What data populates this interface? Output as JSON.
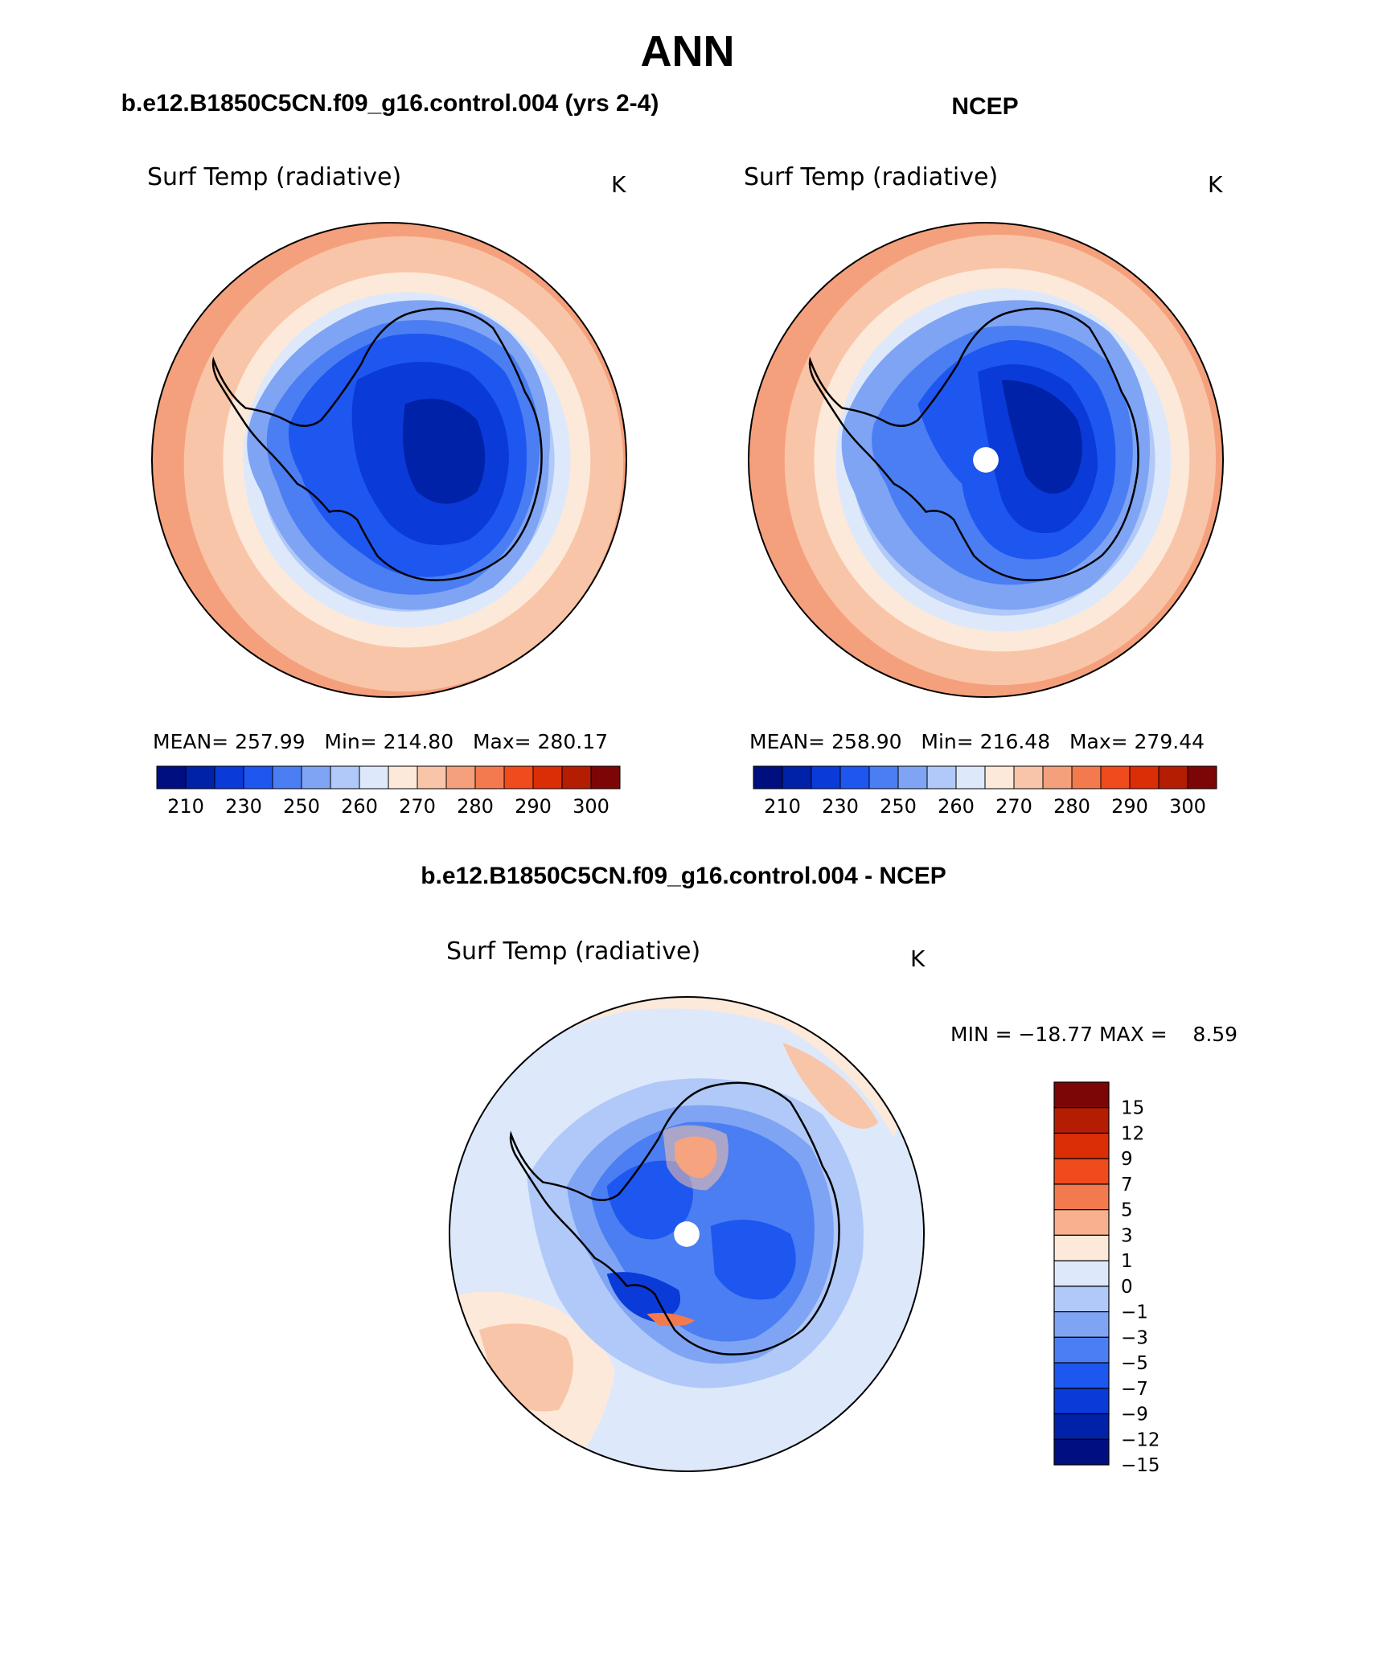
{
  "page_title": "ANN",
  "panels": [
    {
      "id": "model",
      "header": "b.e12.B1850C5CN.f09_g16.control.004 (yrs 2-4)",
      "variable": "Surf Temp (radiative)",
      "units": "K",
      "stats": "MEAN= 257.99   Min= 214.80   Max= 280.17"
    },
    {
      "id": "obs",
      "header": "NCEP",
      "variable": "Surf Temp (radiative)",
      "units": "K",
      "stats": "MEAN= 258.90   Min= 216.48   Max= 279.44"
    },
    {
      "id": "diff",
      "header": "b.e12.B1850C5CN.f09_g16.control.004 - NCEP",
      "variable": "Surf Temp (radiative)",
      "units": "K",
      "stats": "MIN = −18.77 MAX =    8.59"
    }
  ],
  "chart_data": [
    {
      "type": "heatmap",
      "projection": "south polar stereographic",
      "title": "Surf Temp (radiative)",
      "units": "K",
      "mean": 257.99,
      "min": 214.8,
      "max": 280.17,
      "colorbar": {
        "orientation": "horizontal",
        "tick_labels": [
          "210",
          "230",
          "250",
          "260",
          "270",
          "280",
          "290",
          "300"
        ],
        "colors": [
          "#000f80",
          "#0022a8",
          "#0a3ad8",
          "#1e56f0",
          "#4a7ef2",
          "#7fa4f4",
          "#b1c9f8",
          "#dde9fb",
          "#fde9d9",
          "#f9c5a8",
          "#f5a07c",
          "#f27a4e",
          "#ef4b1c",
          "#db2e07",
          "#b51d03",
          "#7c0606"
        ]
      }
    },
    {
      "type": "heatmap",
      "projection": "south polar stereographic",
      "title": "Surf Temp (radiative)",
      "units": "K",
      "mean": 258.9,
      "min": 216.48,
      "max": 279.44,
      "colorbar": {
        "orientation": "horizontal",
        "tick_labels": [
          "210",
          "230",
          "250",
          "260",
          "270",
          "280",
          "290",
          "300"
        ],
        "colors": [
          "#000f80",
          "#0022a8",
          "#0a3ad8",
          "#1e56f0",
          "#4a7ef2",
          "#7fa4f4",
          "#b1c9f8",
          "#dde9fb",
          "#fde9d9",
          "#f9c5a8",
          "#f5a07c",
          "#f27a4e",
          "#ef4b1c",
          "#db2e07",
          "#b51d03",
          "#7c0606"
        ]
      }
    },
    {
      "type": "heatmap",
      "projection": "south polar stereographic",
      "title": "Surf Temp (radiative)",
      "units": "K",
      "min": -18.77,
      "max": 8.59,
      "colorbar": {
        "orientation": "vertical",
        "tick_labels": [
          "15",
          "12",
          "9",
          "7",
          "5",
          "3",
          "1",
          "0",
          "−1",
          "−3",
          "−5",
          "−7",
          "−9",
          "−12",
          "−15"
        ],
        "colors": [
          "#7c0606",
          "#b51d03",
          "#db2e07",
          "#ef4b1c",
          "#f27a4e",
          "#f9b08f",
          "#fde9d9",
          "#dde9fb",
          "#b1c9f8",
          "#7fa4f4",
          "#4a7ef2",
          "#1e56f0",
          "#0a3ad8",
          "#0022a8",
          "#000f80"
        ]
      }
    }
  ]
}
